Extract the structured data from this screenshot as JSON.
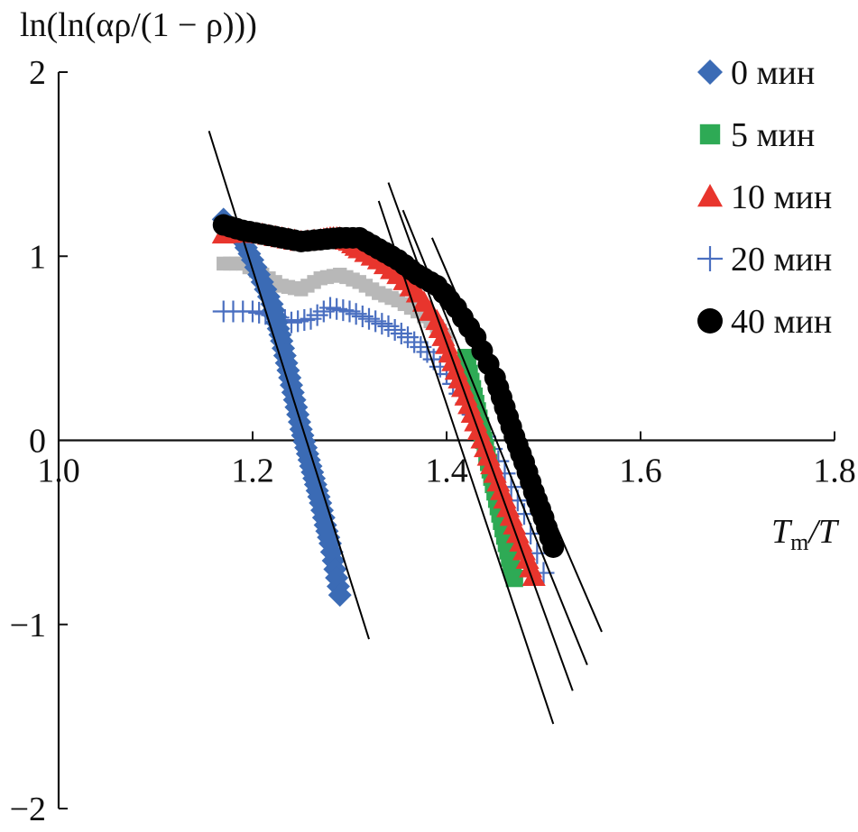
{
  "chart_data": {
    "type": "scatter",
    "title": "",
    "ylabel": "ln(ln(αρ/(1 − ρ)))",
    "xlabel_main": "T",
    "xlabel_sub": "m",
    "xlabel_tail": "/T",
    "xlim": [
      1.0,
      1.8
    ],
    "ylim": [
      -2,
      2
    ],
    "xticks": [
      1.0,
      1.2,
      1.4,
      1.6,
      1.8
    ],
    "xtick_labels": [
      "1.0",
      "1.2",
      "1.4",
      "1.6",
      "1.8"
    ],
    "yticks": [
      -2,
      -1,
      0,
      1,
      2
    ],
    "ytick_labels": [
      "−2",
      "−1",
      "0",
      "1",
      "2"
    ],
    "legend_position": "right",
    "series": [
      {
        "name": "0 мин",
        "marker": "diamond",
        "color": "#3b6bb5",
        "x": [
          1.17,
          1.18,
          1.19,
          1.2,
          1.21,
          1.22,
          1.225,
          1.23,
          1.235,
          1.24,
          1.245,
          1.25,
          1.255,
          1.26,
          1.265,
          1.27,
          1.275,
          1.28,
          1.285,
          1.29
        ],
        "y": [
          1.2,
          1.14,
          1.08,
          0.98,
          0.86,
          0.74,
          0.64,
          0.54,
          0.42,
          0.3,
          0.18,
          0.06,
          -0.04,
          -0.14,
          -0.24,
          -0.34,
          -0.46,
          -0.56,
          -0.7,
          -0.84
        ]
      },
      {
        "name": "5 мин",
        "marker": "square",
        "color": "#2eaa55",
        "x": [
          1.42,
          1.425,
          1.43,
          1.435,
          1.44,
          1.445,
          1.45,
          1.455,
          1.46,
          1.465,
          1.47
        ],
        "y": [
          0.45,
          0.32,
          0.2,
          0.08,
          -0.04,
          -0.16,
          -0.28,
          -0.4,
          -0.52,
          -0.64,
          -0.75
        ]
      },
      {
        "name": "10 мин",
        "marker": "triangle",
        "color": "#e8352d",
        "x": [
          1.17,
          1.19,
          1.21,
          1.23,
          1.25,
          1.27,
          1.28,
          1.29,
          1.3,
          1.31,
          1.33,
          1.35,
          1.37,
          1.39,
          1.4,
          1.41,
          1.42,
          1.43,
          1.44,
          1.45,
          1.46,
          1.47,
          1.48,
          1.49
        ],
        "y": [
          1.12,
          1.13,
          1.12,
          1.1,
          1.08,
          1.09,
          1.1,
          1.1,
          1.08,
          1.04,
          0.98,
          0.9,
          0.8,
          0.65,
          0.52,
          0.38,
          0.24,
          0.1,
          -0.04,
          -0.18,
          -0.32,
          -0.46,
          -0.6,
          -0.74
        ]
      },
      {
        "name": "20 мин",
        "marker": "plus",
        "color": "#4a6fc0",
        "x": [
          1.17,
          1.2,
          1.22,
          1.24,
          1.26,
          1.28,
          1.3,
          1.32,
          1.34,
          1.36,
          1.38,
          1.4,
          1.42,
          1.44,
          1.46,
          1.48,
          1.5
        ],
        "y": [
          0.7,
          0.7,
          0.68,
          0.64,
          0.66,
          0.72,
          0.7,
          0.66,
          0.62,
          0.56,
          0.48,
          0.36,
          0.2,
          0.02,
          -0.18,
          -0.4,
          -0.72
        ]
      },
      {
        "name": "",
        "marker": "square-small",
        "color": "#b8b8b8",
        "x": [
          1.17,
          1.19,
          1.21,
          1.23,
          1.25,
          1.27,
          1.29,
          1.31,
          1.33,
          1.35,
          1.37,
          1.39,
          1.4
        ],
        "y": [
          0.96,
          0.96,
          0.9,
          0.84,
          0.82,
          0.88,
          0.9,
          0.86,
          0.8,
          0.76,
          0.7,
          0.62,
          0.55
        ]
      },
      {
        "name": "40 мин",
        "marker": "circle",
        "color": "#000000",
        "x": [
          1.17,
          1.19,
          1.21,
          1.23,
          1.25,
          1.27,
          1.29,
          1.31,
          1.33,
          1.35,
          1.37,
          1.39,
          1.41,
          1.43,
          1.45,
          1.46,
          1.47,
          1.48,
          1.49,
          1.5,
          1.51
        ],
        "y": [
          1.17,
          1.14,
          1.12,
          1.1,
          1.08,
          1.09,
          1.1,
          1.1,
          1.04,
          0.98,
          0.9,
          0.84,
          0.72,
          0.56,
          0.34,
          0.18,
          0.02,
          -0.12,
          -0.28,
          -0.42,
          -0.58
        ]
      }
    ],
    "fit_lines": [
      {
        "series": "0 мин",
        "x": [
          1.155,
          1.32
        ],
        "y": [
          1.68,
          -1.08
        ]
      },
      {
        "series": "5 мин",
        "x": [
          1.33,
          1.51
        ],
        "y": [
          1.3,
          -1.54
        ]
      },
      {
        "series": "10 мин",
        "x": [
          1.34,
          1.53
        ],
        "y": [
          1.4,
          -1.36
        ]
      },
      {
        "series": "20 мин",
        "x": [
          1.355,
          1.545
        ],
        "y": [
          1.25,
          -1.22
        ]
      },
      {
        "series": "40 мин",
        "x": [
          1.385,
          1.56
        ],
        "y": [
          1.1,
          -1.04
        ]
      }
    ]
  }
}
